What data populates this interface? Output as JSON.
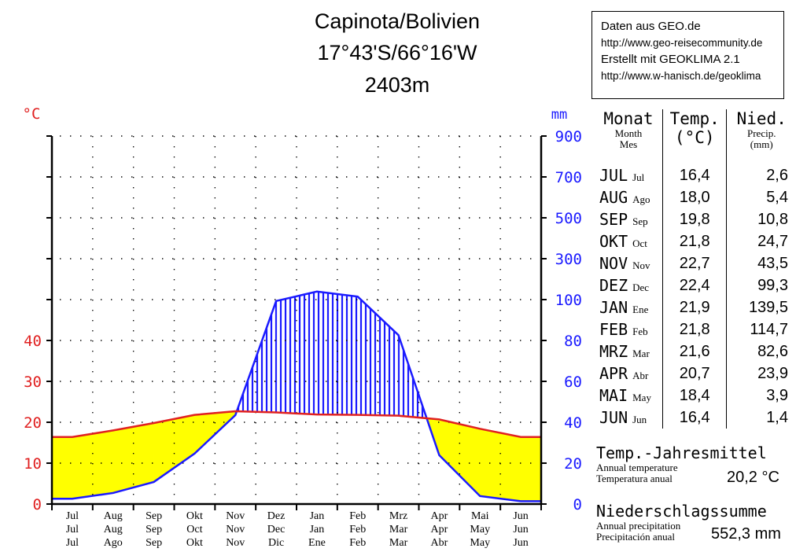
{
  "header": {
    "line1": "Capinota/Bolivien",
    "line2": "17°43'S/66°16'W",
    "line3": "2403m"
  },
  "source": {
    "line1": "Daten aus GEO.de",
    "line2": "http://www.geo-reisecommunity.de",
    "line3": "Erstellt mit GEOKLIMA 2.1",
    "line4": "http://www.w-hanisch.de/geoklima"
  },
  "colors": {
    "temp_line": "#e02020",
    "precip_line": "#1a1aff",
    "arid_fill": "#ffff00",
    "humid_hatch": "#1a1aff",
    "axis_left": "#e02020",
    "axis_right": "#1a1aff"
  },
  "table": {
    "h_month": "Monat",
    "h_month_en": "Month",
    "h_month_es": "Mes",
    "h_temp": "Temp.",
    "h_temp_unit": "(°C)",
    "h_prec": "Nied.",
    "h_prec_en": "Precip.",
    "h_prec_unit": "(mm)",
    "rows": [
      {
        "de": "JUL",
        "es": "Jul",
        "t": "16,4",
        "p": "2,6"
      },
      {
        "de": "AUG",
        "es": "Ago",
        "t": "18,0",
        "p": "5,4"
      },
      {
        "de": "SEP",
        "es": "Sep",
        "t": "19,8",
        "p": "10,8"
      },
      {
        "de": "OKT",
        "es": "Oct",
        "t": "21,8",
        "p": "24,7"
      },
      {
        "de": "NOV",
        "es": "Nov",
        "t": "22,7",
        "p": "43,5"
      },
      {
        "de": "DEZ",
        "es": "Dec",
        "t": "22,4",
        "p": "99,3"
      },
      {
        "de": "JAN",
        "es": "Ene",
        "t": "21,9",
        "p": "139,5"
      },
      {
        "de": "FEB",
        "es": "Feb",
        "t": "21,8",
        "p": "114,7"
      },
      {
        "de": "MRZ",
        "es": "Mar",
        "t": "21,6",
        "p": "82,6"
      },
      {
        "de": "APR",
        "es": "Abr",
        "t": "20,7",
        "p": "23,9"
      },
      {
        "de": "MAI",
        "es": "May",
        "t": "18,4",
        "p": "3,9"
      },
      {
        "de": "JUN",
        "es": "Jun",
        "t": "16,4",
        "p": "1,4"
      }
    ]
  },
  "annual": {
    "temp_label": "Temp.-Jahresmittel",
    "temp_en": "Annual temperature",
    "temp_es": "Temperatura anual",
    "temp_value": "20,2 °C",
    "prec_label": "Niederschlagssumme",
    "prec_en": "Annual precipitation",
    "prec_es": "Precipitación anual",
    "prec_value": "552,3 mm"
  },
  "chart_data": {
    "type": "line",
    "x_labels_de": [
      "Jul",
      "Aug",
      "Sep",
      "Okt",
      "Nov",
      "Dez",
      "Jan",
      "Feb",
      "Mrz",
      "Apr",
      "Mai",
      "Jun"
    ],
    "x_labels_en": [
      "Jul",
      "Aug",
      "Sep",
      "Oct",
      "Nov",
      "Dec",
      "Jan",
      "Feb",
      "Mar",
      "Apr",
      "May",
      "Jun"
    ],
    "x_labels_es": [
      "Jul",
      "Ago",
      "Sep",
      "Okt",
      "Nov",
      "Dic",
      "Ene",
      "Feb",
      "Mar",
      "Abr",
      "May",
      "Jun"
    ],
    "temperature": [
      16.4,
      18.0,
      19.8,
      21.8,
      22.7,
      22.4,
      21.9,
      21.8,
      21.6,
      20.7,
      18.4,
      16.4
    ],
    "precipitation": [
      2.6,
      5.4,
      10.8,
      24.7,
      43.5,
      99.3,
      139.5,
      114.7,
      82.6,
      23.9,
      3.9,
      1.4
    ],
    "left_axis_unit": "°C",
    "right_axis_unit": "mm",
    "left_ticks": [
      "0",
      "10",
      "20",
      "30",
      "40"
    ],
    "right_ticks": [
      "0",
      "20",
      "40",
      "60",
      "80",
      "100",
      "300",
      "500",
      "700",
      "900"
    ],
    "temp_range": [
      0,
      90
    ],
    "precip_scale": "2 mm per °C up to 100 mm, then 20 mm per °C"
  }
}
